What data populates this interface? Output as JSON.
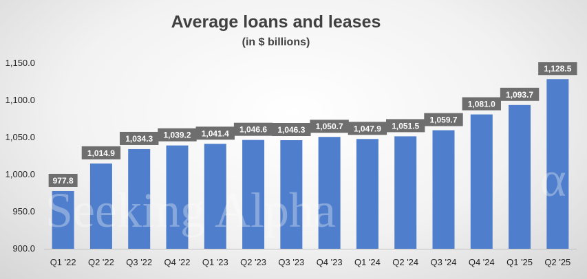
{
  "chart_data": {
    "type": "bar",
    "title": "Average loans and leases",
    "subtitle": "(in $ billions)",
    "categories": [
      "Q1 '22",
      "Q2 '22",
      "Q3 '22",
      "Q4 '22",
      "Q1 '23",
      "Q2 '23",
      "Q3 '23",
      "Q4 '23",
      "Q1 '24",
      "Q2 '24",
      "Q3 '24",
      "Q4 '24",
      "Q1 '25",
      "Q2 '25"
    ],
    "values": [
      977.8,
      1014.9,
      1034.3,
      1039.2,
      1041.4,
      1046.6,
      1046.3,
      1050.7,
      1047.9,
      1051.5,
      1059.7,
      1081.0,
      1093.7,
      1128.5
    ],
    "data_labels": [
      "977.8",
      "1,014.9",
      "1,034.3",
      "1,039.2",
      "1,041.4",
      "1,046.6",
      "1,046.3",
      "1,050.7",
      "1,047.9",
      "1,051.5",
      "1,059.7",
      "1,081.0",
      "1,093.7",
      "1,128.5"
    ],
    "ylim": [
      900,
      1150
    ],
    "yticks": [
      900,
      950,
      1000,
      1050,
      1100,
      1150
    ],
    "ytick_labels": [
      "900.0",
      "950.0",
      "1,000.0",
      "1,050.0",
      "1,100.0",
      "1,150.0"
    ],
    "grid": false,
    "legend": "none",
    "colors": {
      "bar": "#4f7fcc",
      "label_bg": "#6e6e6e",
      "axis": "#bfbfbf"
    }
  },
  "watermark": "Seeking Alpha",
  "watermark_symbol": "α"
}
